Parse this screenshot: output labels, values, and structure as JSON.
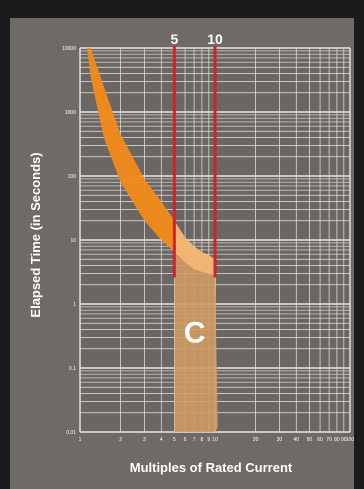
{
  "chart_data": {
    "type": "area",
    "title": "",
    "xlabel": "Multiples of Rated Current",
    "ylabel": "Elapsed Time (in Seconds)",
    "x_scale": "log",
    "y_scale": "log",
    "xlim": [
      1,
      100
    ],
    "ylim": [
      0.01,
      10000
    ],
    "grid": true,
    "top_labels": [
      "5",
      "10"
    ],
    "markers": [
      {
        "x": 5,
        "label": "5",
        "color": "#d0242b"
      },
      {
        "x": 10,
        "label": "10",
        "color": "#d0242b"
      }
    ],
    "region_label": "C",
    "series": [
      {
        "name": "",
        "color": "#f08a1c",
        "x": [
          1.13,
          1.2,
          1.5,
          2,
          3,
          4,
          5
        ],
        "y_min": [
          10000,
          3500,
          400,
          80,
          20,
          10,
          6.5
        ],
        "y_max": [
          10000,
          10000,
          2500,
          450,
          90,
          40,
          20
        ]
      },
      {
        "name": "",
        "color": "#f6b673",
        "x": [
          5,
          6,
          7,
          8,
          9,
          10
        ],
        "y_min": [
          6.5,
          4.5,
          3.5,
          3.2,
          3.0,
          2.8
        ],
        "y_max": [
          20,
          11,
          8,
          6.5,
          5.8,
          5.0
        ]
      },
      {
        "name": "",
        "color": "#cf9a63",
        "x": [
          5,
          10,
          10.5,
          12,
          100
        ],
        "y_min": [
          0.01,
          0.01,
          0.012,
          0.012,
          0.012
        ],
        "y_max": [
          6.5,
          2.8,
          0.012,
          0.012,
          0.012
        ]
      }
    ]
  }
}
